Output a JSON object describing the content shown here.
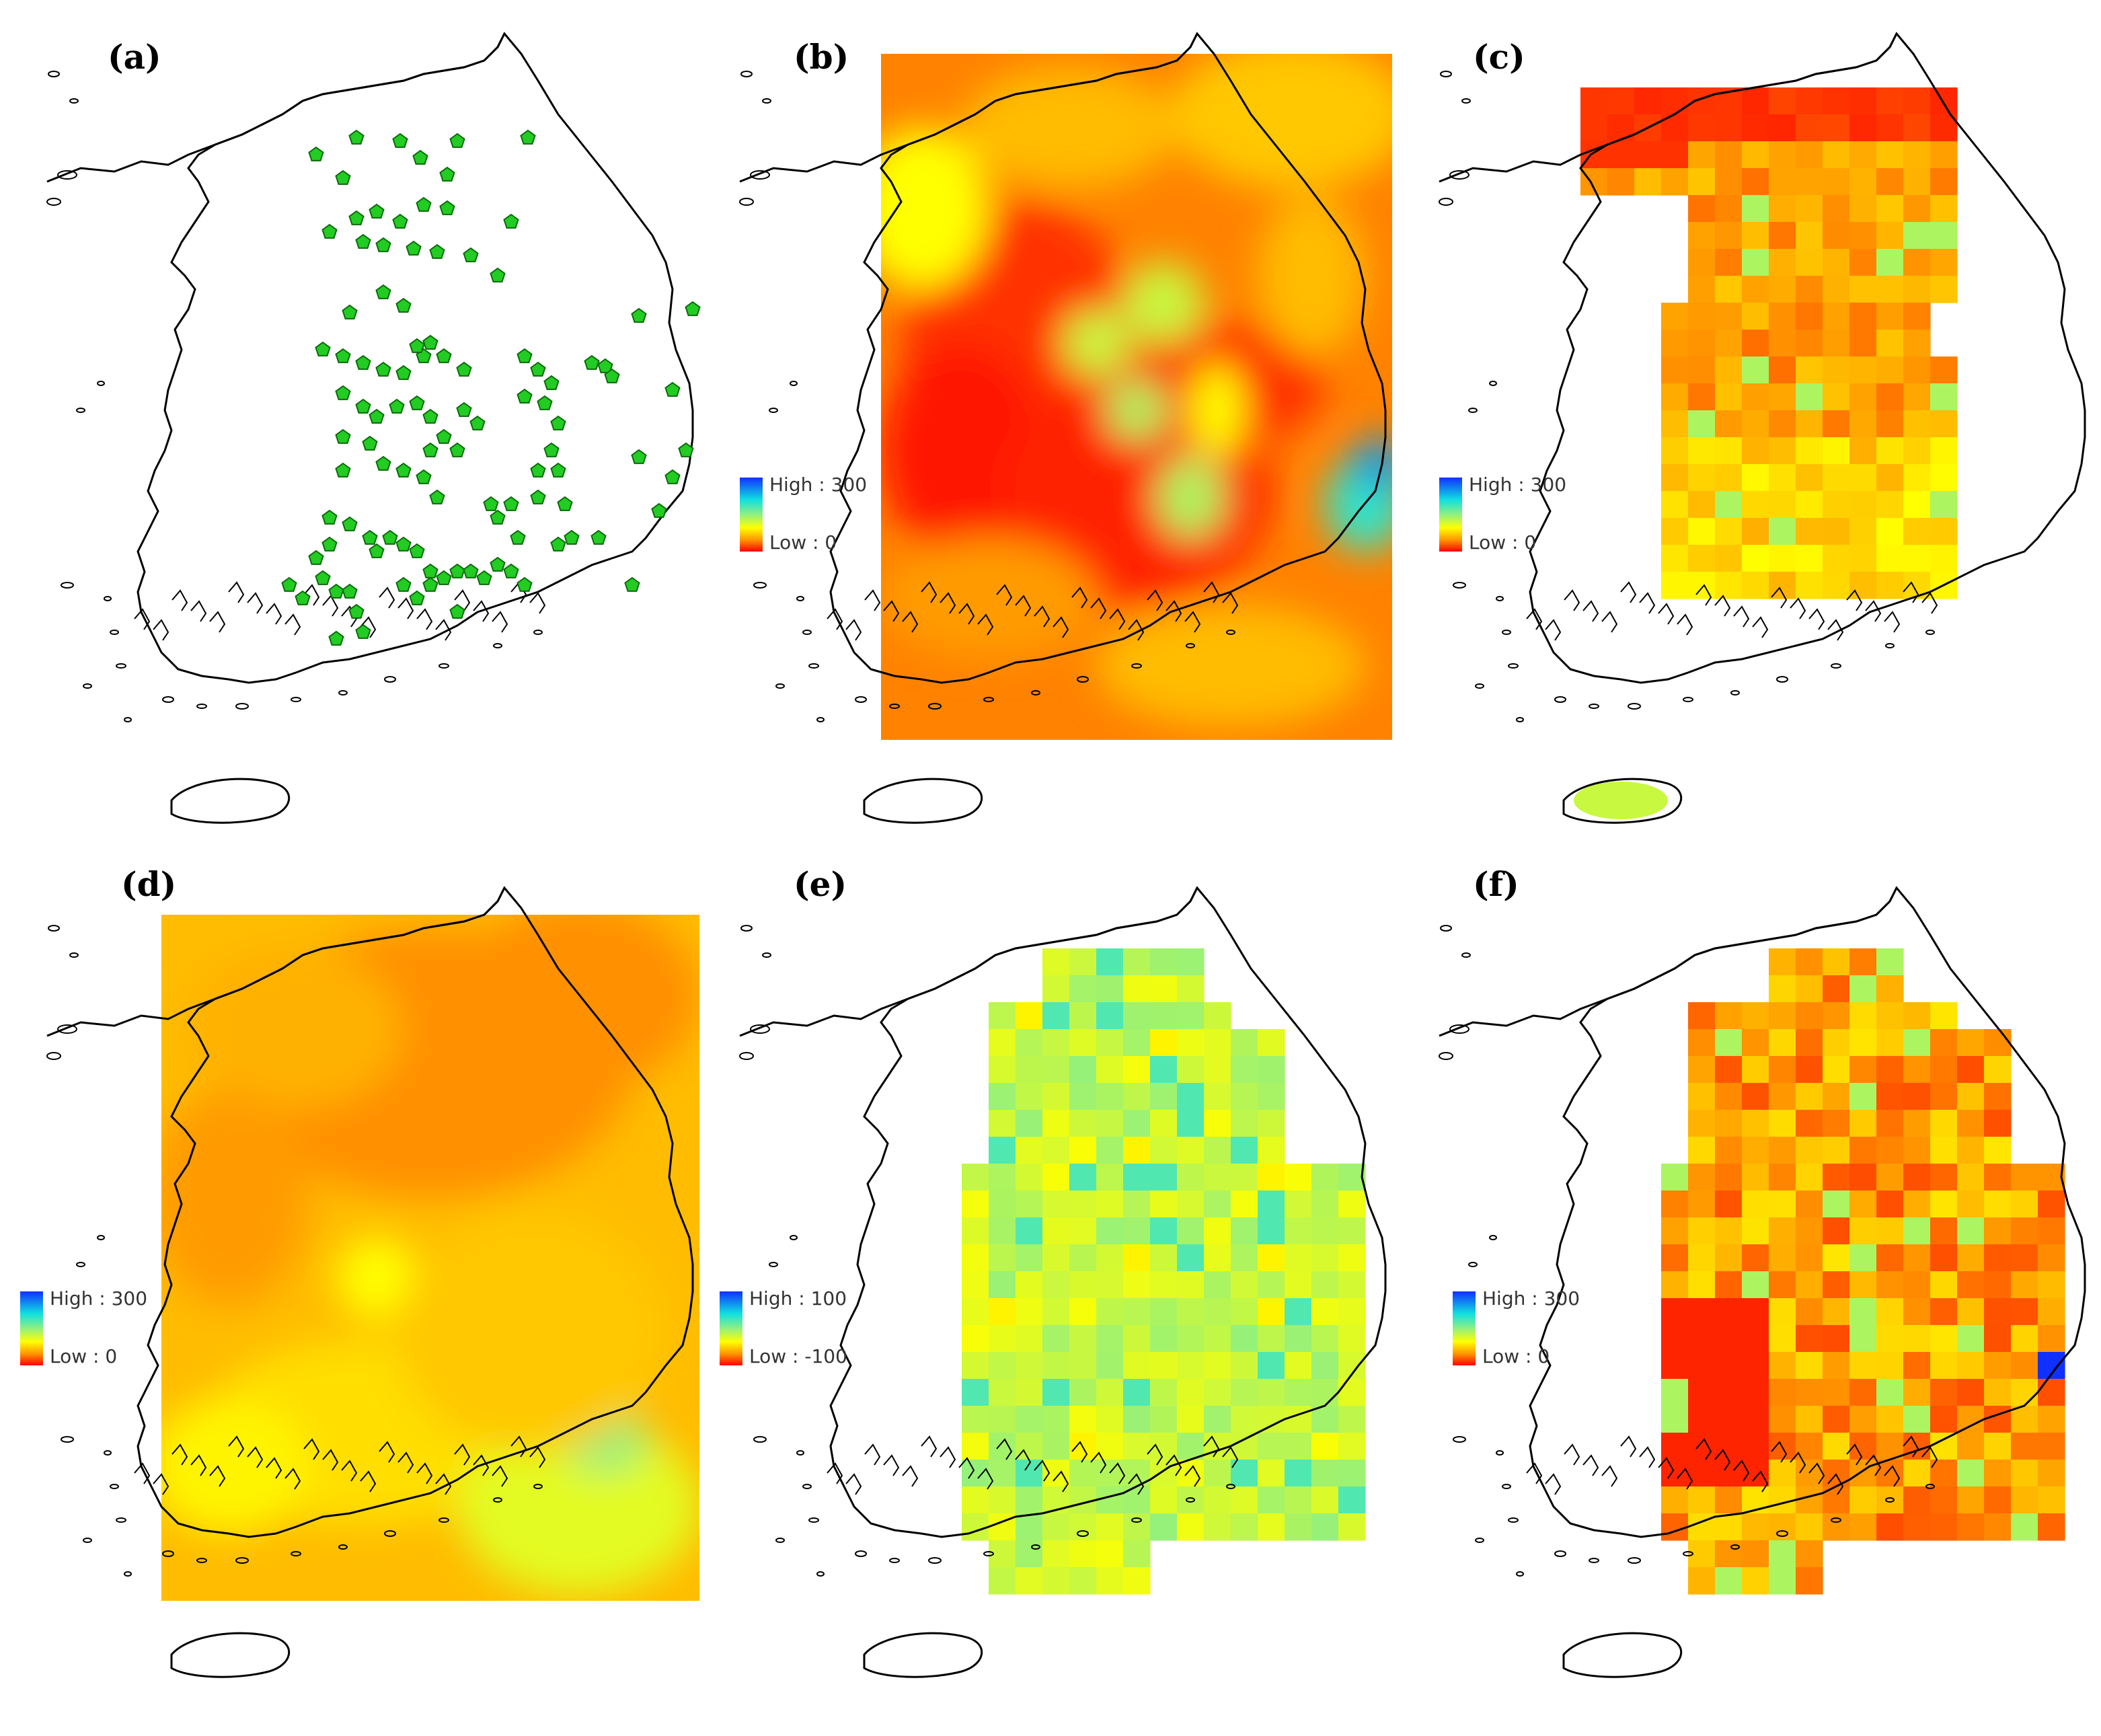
{
  "figure": {
    "panels": [
      {
        "id": "a",
        "label": "(a)",
        "type": "stations",
        "legend": null
      },
      {
        "id": "b",
        "label": "(b)",
        "type": "smooth",
        "legend": {
          "high": "High : 300",
          "low": "Low : 0"
        }
      },
      {
        "id": "c",
        "label": "(c)",
        "type": "grid",
        "legend": {
          "high": "High : 300",
          "low": "Low : 0"
        }
      },
      {
        "id": "d",
        "label": "(d)",
        "type": "smooth-yellow",
        "legend": {
          "high": "High : 300",
          "low": "Low : 0"
        }
      },
      {
        "id": "e",
        "label": "(e)",
        "type": "grid-cyan",
        "legend": {
          "high": "High : 100",
          "low": "Low : -100"
        }
      },
      {
        "id": "f",
        "label": "(f)",
        "type": "grid-red",
        "legend": {
          "high": "High : 300",
          "low": "Low : 0"
        }
      }
    ],
    "colors": {
      "station": "#22cc22",
      "coast": "#000000",
      "ramp": [
        "#1030ff",
        "#10e0e0",
        "#90f080",
        "#ffff00",
        "#ff9000",
        "#ff0000"
      ]
    }
  }
}
